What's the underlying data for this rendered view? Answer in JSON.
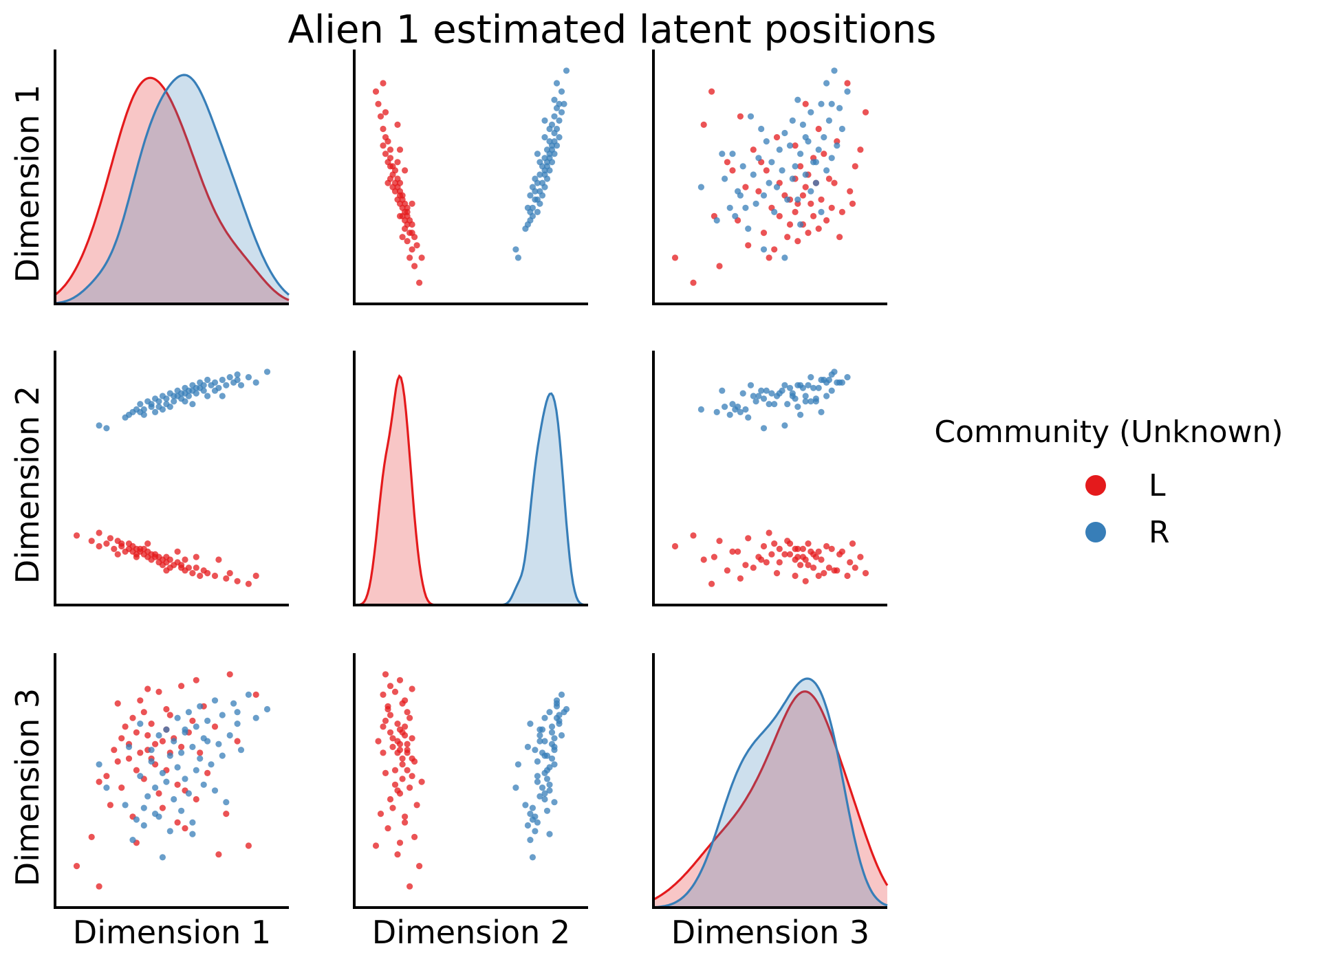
{
  "title": "Alien 1 estimated latent positions",
  "colors": {
    "L": "#e41a1c",
    "R": "#377eb8",
    "axis": "#000000"
  },
  "legend": {
    "title": "Community (Unknown)",
    "items": [
      {
        "label": "L",
        "color": "#e41a1c"
      },
      {
        "label": "R",
        "color": "#377eb8"
      }
    ]
  },
  "chart_data": {
    "type": "scatter",
    "title": "Alien 1 estimated latent positions",
    "dimensions": [
      "Dimension 1",
      "Dimension 2",
      "Dimension 3"
    ],
    "xlabels": [
      "Dimension 1",
      "Dimension 2",
      "Dimension 3"
    ],
    "ylabels": [
      "Dimension 1",
      "Dimension 2",
      "Dimension 3"
    ],
    "diagonal": "kde",
    "off_diagonal": "scatter",
    "ticks_visible": false,
    "legend_position": "center-right",
    "series": [
      {
        "name": "L",
        "color": "#e41a1c",
        "points": [
          [
            0.04,
            0.34,
            -0.37
          ],
          [
            0.08,
            0.32,
            -0.27
          ],
          [
            0.1,
            0.35,
            -0.08
          ],
          [
            0.1,
            0.3,
            -0.44
          ],
          [
            0.12,
            0.31,
            -0.06
          ],
          [
            0.13,
            0.33,
            -0.16
          ],
          [
            0.14,
            0.29,
            0.03
          ],
          [
            0.15,
            0.32,
            -0.01
          ],
          [
            0.16,
            0.31,
            0.07
          ],
          [
            0.16,
            0.3,
            -0.1
          ],
          [
            0.17,
            0.28,
            0.11
          ],
          [
            0.18,
            0.31,
            0.0
          ],
          [
            0.18,
            0.29,
            0.05
          ],
          [
            0.19,
            0.28,
            -0.2
          ],
          [
            0.19,
            0.3,
            0.14
          ],
          [
            0.2,
            0.29,
            -0.04
          ],
          [
            0.2,
            0.27,
            0.09
          ],
          [
            0.21,
            0.29,
            0.02
          ],
          [
            0.21,
            0.28,
            0.2
          ],
          [
            0.22,
            0.27,
            -0.07
          ],
          [
            0.22,
            0.29,
            0.16
          ],
          [
            0.23,
            0.26,
            0.03
          ],
          [
            0.23,
            0.28,
            0.08
          ],
          [
            0.24,
            0.27,
            0.0
          ],
          [
            0.24,
            0.25,
            0.12
          ],
          [
            0.25,
            0.27,
            -0.02
          ],
          [
            0.25,
            0.26,
            0.05
          ],
          [
            0.26,
            0.24,
            0.23
          ],
          [
            0.26,
            0.26,
            -0.12
          ],
          [
            0.27,
            0.25,
            0.06
          ],
          [
            0.27,
            0.23,
            -0.17
          ],
          [
            0.28,
            0.26,
            0.1
          ],
          [
            0.28,
            0.24,
            -0.04
          ],
          [
            0.29,
            0.22,
            0.15
          ],
          [
            0.29,
            0.25,
            0.02
          ],
          [
            0.3,
            0.23,
            0.07
          ],
          [
            0.31,
            0.24,
            -0.09
          ],
          [
            0.32,
            0.22,
            0.25
          ],
          [
            0.32,
            0.23,
            0.04
          ],
          [
            0.33,
            0.21,
            -0.24
          ],
          [
            0.34,
            0.22,
            0.09
          ],
          [
            0.35,
            0.2,
            0.13
          ],
          [
            0.36,
            0.22,
            -0.14
          ],
          [
            0.37,
            0.19,
            0.02
          ],
          [
            0.38,
            0.21,
            0.18
          ],
          [
            0.39,
            0.2,
            -0.05
          ],
          [
            0.41,
            0.19,
            0.11
          ],
          [
            0.44,
            0.18,
            -0.19
          ],
          [
            0.47,
            0.17,
            0.06
          ],
          [
            0.5,
            0.16,
            -0.3
          ],
          [
            0.52,
            0.19,
            0.22
          ],
          [
            0.42,
            0.25,
            -0.33
          ],
          [
            0.36,
            0.26,
            0.27
          ],
          [
            0.31,
            0.28,
            -0.22
          ],
          [
            0.28,
            0.21,
            0.17
          ],
          [
            0.45,
            0.2,
            0.29
          ],
          [
            0.2,
            0.26,
            -0.29
          ],
          [
            0.15,
            0.27,
            0.19
          ],
          [
            0.23,
            0.31,
            0.24
          ],
          [
            0.33,
            0.25,
            -0.11
          ]
        ]
      },
      {
        "name": "R",
        "color": "#377eb8",
        "points": [
          [
            0.1,
            0.75,
            -0.02
          ],
          [
            0.12,
            0.74,
            -0.1
          ],
          [
            0.17,
            0.78,
            -0.16
          ],
          [
            0.18,
            0.79,
            0.04
          ],
          [
            0.19,
            0.8,
            -0.28
          ],
          [
            0.2,
            0.81,
            -0.21
          ],
          [
            0.21,
            0.8,
            0.12
          ],
          [
            0.21,
            0.83,
            -0.06
          ],
          [
            0.22,
            0.81,
            -0.17
          ],
          [
            0.23,
            0.84,
            -0.13
          ],
          [
            0.24,
            0.82,
            0.03
          ],
          [
            0.24,
            0.83,
            -0.01
          ],
          [
            0.25,
            0.85,
            -0.1
          ],
          [
            0.26,
            0.84,
            0.08
          ],
          [
            0.26,
            0.82,
            -0.2
          ],
          [
            0.27,
            0.86,
            -0.05
          ],
          [
            0.28,
            0.85,
            0.1
          ],
          [
            0.28,
            0.83,
            -0.08
          ],
          [
            0.29,
            0.87,
            0.01
          ],
          [
            0.3,
            0.86,
            -0.14
          ],
          [
            0.3,
            0.84,
            0.06
          ],
          [
            0.31,
            0.88,
            -0.03
          ],
          [
            0.31,
            0.86,
            0.14
          ],
          [
            0.32,
            0.87,
            -0.18
          ],
          [
            0.32,
            0.85,
            0.02
          ],
          [
            0.33,
            0.89,
            0.09
          ],
          [
            0.33,
            0.87,
            -0.07
          ],
          [
            0.34,
            0.88,
            0.16
          ],
          [
            0.34,
            0.86,
            -0.12
          ],
          [
            0.35,
            0.9,
            0.04
          ],
          [
            0.35,
            0.88,
            -0.26
          ],
          [
            0.36,
            0.89,
            0.11
          ],
          [
            0.36,
            0.87,
            -0.04
          ],
          [
            0.37,
            0.91,
            0.18
          ],
          [
            0.37,
            0.89,
            0.0
          ],
          [
            0.38,
            0.9,
            0.07
          ],
          [
            0.38,
            0.88,
            -0.09
          ],
          [
            0.39,
            0.92,
            0.13
          ],
          [
            0.4,
            0.9,
            -0.02
          ],
          [
            0.41,
            0.91,
            0.2
          ],
          [
            0.42,
            0.89,
            0.05
          ],
          [
            0.43,
            0.92,
            0.15
          ],
          [
            0.44,
            0.9,
            -0.15
          ],
          [
            0.45,
            0.93,
            0.08
          ],
          [
            0.46,
            0.91,
            0.19
          ],
          [
            0.47,
            0.92,
            0.12
          ],
          [
            0.48,
            0.9,
            0.03
          ],
          [
            0.5,
            0.93,
            0.22
          ],
          [
            0.52,
            0.91,
            0.14
          ],
          [
            0.55,
            0.95,
            0.17
          ],
          [
            0.22,
            0.79,
            -0.23
          ],
          [
            0.27,
            0.81,
            -0.34
          ],
          [
            0.29,
            0.82,
            -0.25
          ],
          [
            0.33,
            0.84,
            0.1
          ],
          [
            0.39,
            0.86,
            0.06
          ],
          [
            0.41,
            0.88,
            -0.11
          ],
          [
            0.43,
            0.86,
            0.01
          ],
          [
            0.25,
            0.8,
            -0.19
          ],
          [
            0.35,
            0.83,
            -0.22
          ],
          [
            0.47,
            0.94,
            0.16
          ]
        ]
      }
    ]
  }
}
